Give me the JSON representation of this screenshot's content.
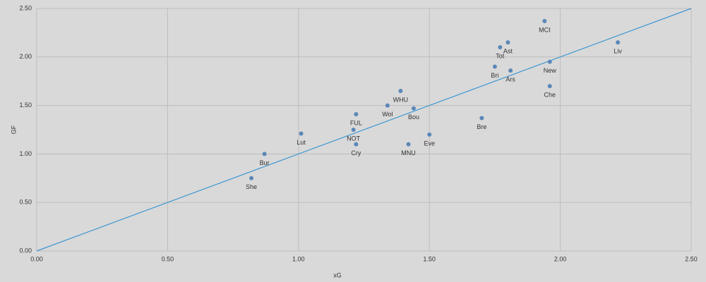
{
  "chart_data": {
    "type": "scatter",
    "x_label": "xG",
    "y_label": "GF",
    "point_labels": [
      "MCI",
      "Ast",
      "Tot",
      "Liv",
      "New",
      "Bri",
      "Ars",
      "Che",
      "WHU",
      "Wol",
      "Bou",
      "FUL",
      "Bre",
      "NOT",
      "Lut",
      "Eve",
      "Cry",
      "MNU",
      "Bur",
      "She"
    ],
    "x": [
      1.94,
      1.8,
      1.77,
      2.22,
      1.96,
      1.75,
      1.81,
      1.96,
      1.39,
      1.34,
      1.44,
      1.22,
      1.7,
      1.21,
      1.01,
      1.5,
      1.22,
      1.42,
      0.87,
      0.82
    ],
    "values": [
      2.37,
      2.15,
      2.1,
      2.15,
      1.95,
      1.9,
      1.86,
      1.7,
      1.65,
      1.5,
      1.47,
      1.41,
      1.37,
      1.25,
      1.21,
      1.2,
      1.1,
      1.1,
      1.0,
      0.75
    ],
    "color": "#5b87b8",
    "reference_line": {
      "x": [
        0,
        2.5
      ],
      "values": [
        0,
        2.5
      ],
      "color": "#3c97d3"
    },
    "xlim": [
      0,
      2.5
    ],
    "ylim": [
      0,
      2.5
    ],
    "xticks": [
      {
        "value": 0,
        "label": "0.00"
      },
      {
        "value": 0.5,
        "label": "0.50"
      },
      {
        "value": 1,
        "label": "1.00"
      },
      {
        "value": 1.5,
        "label": "1.50"
      },
      {
        "value": 2,
        "label": "2.00"
      },
      {
        "value": 2.5,
        "label": "2.50"
      }
    ],
    "yticks": [
      {
        "value": 0,
        "label": "0.00"
      },
      {
        "value": 0.5,
        "label": "0.50"
      },
      {
        "value": 1,
        "label": "1.00"
      },
      {
        "value": 1.5,
        "label": "1.50"
      },
      {
        "value": 2,
        "label": "2.00"
      },
      {
        "value": 2.5,
        "label": "2.50"
      }
    ],
    "grid": true
  }
}
